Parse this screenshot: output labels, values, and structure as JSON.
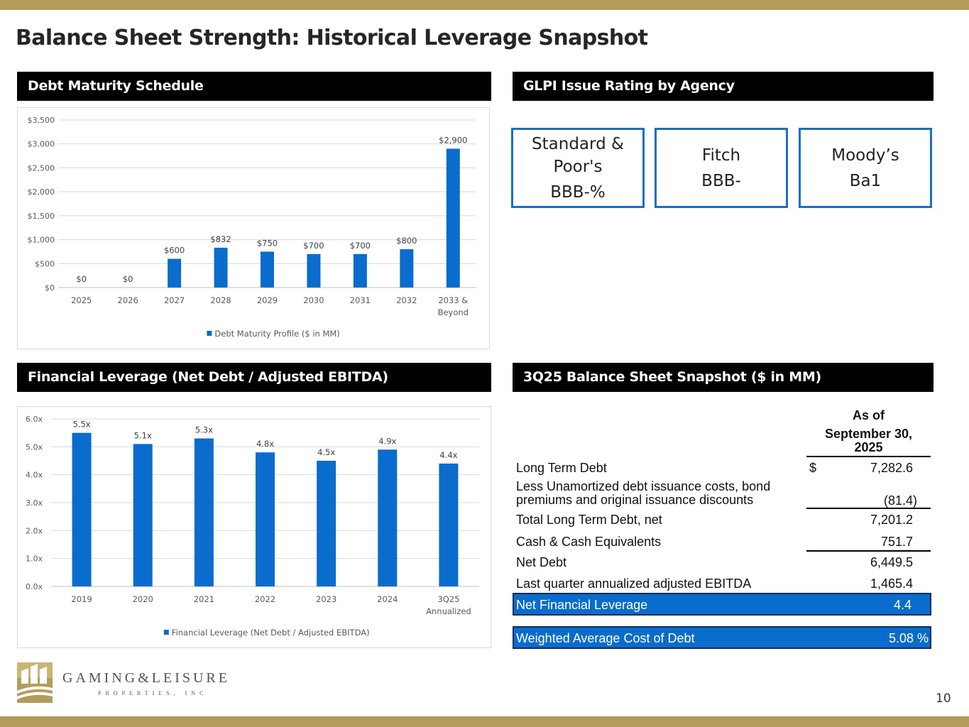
{
  "title": "Balance Sheet Strength: Historical Leverage Snapshot",
  "sections": {
    "debt_maturity": "Debt Maturity Schedule",
    "ratings": "GLPI Issue Rating by Agency",
    "leverage": "Financial Leverage (Net Debt / Adjusted EBITDA)",
    "balance_sheet": "3Q25 Balance Sheet Snapshot ($ in MM)"
  },
  "ratings": [
    {
      "agency": "Standard & Poor's",
      "rating": "BBB-%"
    },
    {
      "agency": "Fitch",
      "rating": "BBB-"
    },
    {
      "agency": "Moody’s",
      "rating": "Ba1"
    }
  ],
  "balance_sheet": {
    "header_line1": "As of",
    "header_line2": "September 30,",
    "header_line3": "2025",
    "rows": [
      {
        "label": "Long Term Debt",
        "dollar": "$",
        "value": "7,282.6"
      },
      {
        "label_line1": "Less Unamortized debt issuance costs, bond",
        "label_line2": "premiums and original issuance discounts",
        "value": "(81.4)"
      },
      {
        "label": "Total Long Term Debt, net",
        "value": "7,201.2"
      },
      {
        "label": "Cash & Cash Equivalents",
        "value": "751.7"
      },
      {
        "label": "Net Debt",
        "value": "6,449.5"
      },
      {
        "label": "Last quarter annualized adjusted EBITDA",
        "value": "1,465.4"
      }
    ],
    "net_leverage": {
      "label": "Net Financial Leverage",
      "value": "4.4"
    },
    "wacd": {
      "label": "Weighted Average Cost of Debt",
      "value": "5.08 %"
    }
  },
  "logo": {
    "name": "GAMING&LEISURE",
    "sub": "PROPERTIES, INC"
  },
  "page_number": "10",
  "colors": {
    "gold": "#b39c5b",
    "bar_blue": "#0a6ccc",
    "box_blue": "#1a6fc4"
  },
  "chart_data": [
    {
      "type": "bar",
      "title": "",
      "categories": [
        "2025",
        "2026",
        "2027",
        "2028",
        "2029",
        "2030",
        "2031",
        "2032",
        "2033 & Beyond"
      ],
      "values": [
        0,
        0,
        600,
        832,
        750,
        700,
        700,
        800,
        2900
      ],
      "data_labels": [
        "$0",
        "$0",
        "$600",
        "$832",
        "$750",
        "$700",
        "$700",
        "$800",
        "$2,900"
      ],
      "y_ticks": [
        "$0",
        "$500",
        "$1,000",
        "$1,500",
        "$2,000",
        "$2,500",
        "$3,000",
        "$3,500"
      ],
      "ylim": [
        0,
        3500
      ],
      "legend": "Debt Maturity Profile ($ in MM)",
      "legend_position": "bottom",
      "grid": true
    },
    {
      "type": "bar",
      "title": "",
      "categories": [
        "2019",
        "2020",
        "2021",
        "2022",
        "2023",
        "2024",
        "3Q25 Annualized"
      ],
      "values": [
        5.5,
        5.1,
        5.3,
        4.8,
        4.5,
        4.9,
        4.4
      ],
      "data_labels": [
        "5.5x",
        "5.1x",
        "5.3x",
        "4.8x",
        "4.5x",
        "4.9x",
        "4.4x"
      ],
      "y_ticks": [
        "0.0x",
        "1.0x",
        "2.0x",
        "3.0x",
        "4.0x",
        "5.0x",
        "6.0x"
      ],
      "ylim": [
        0,
        6
      ],
      "legend": "Financial Leverage (Net Debt / Adjusted EBITDA)",
      "legend_position": "bottom",
      "grid": true
    }
  ]
}
